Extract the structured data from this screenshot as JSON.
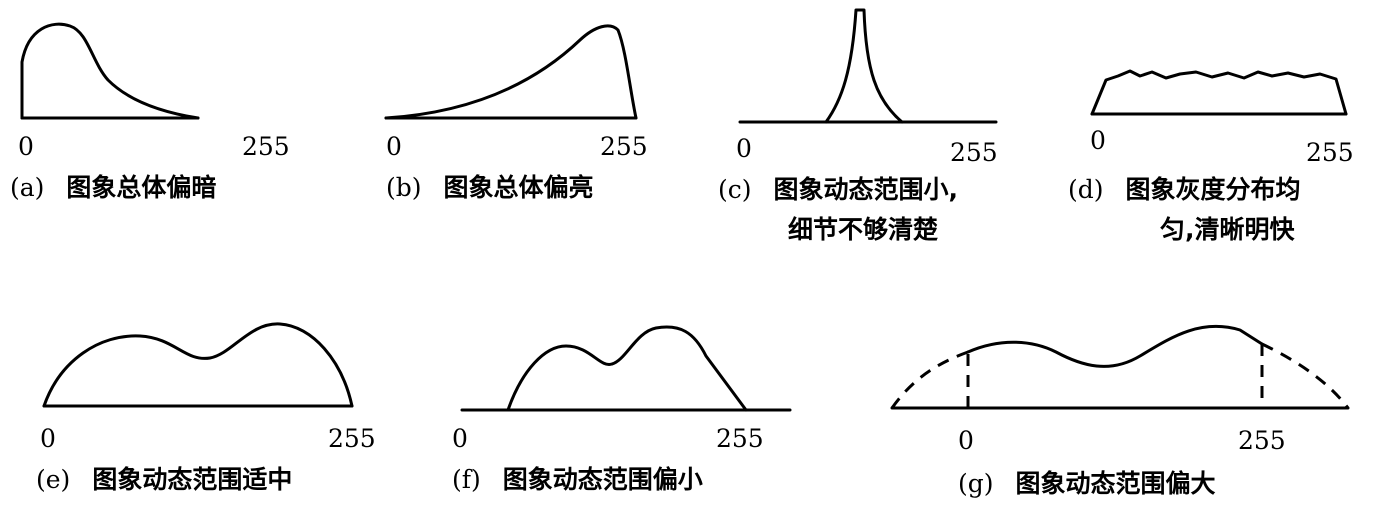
{
  "panels": [
    {
      "id": "a",
      "label": "(a)",
      "caption": "图象总体偏暗",
      "x_min": "0",
      "x_max": "255"
    },
    {
      "id": "b",
      "label": "(b)",
      "caption": "图象总体偏亮",
      "x_min": "0",
      "x_max": "255"
    },
    {
      "id": "c",
      "label": "(c)",
      "caption": "图象动态范围小,",
      "caption_line2": "细节不够清楚",
      "x_min": "0",
      "x_max": "255"
    },
    {
      "id": "d",
      "label": "(d)",
      "caption": "图象灰度分布均",
      "caption_line2": "匀,清晰明快",
      "x_min": "0",
      "x_max": "255"
    },
    {
      "id": "e",
      "label": "(e)",
      "caption": "图象动态范围适中",
      "x_min": "0",
      "x_max": "255"
    },
    {
      "id": "f",
      "label": "(f)",
      "caption": "图象动态范围偏小",
      "x_min": "0",
      "x_max": "255"
    },
    {
      "id": "g",
      "label": "(g)",
      "caption": "图象动态范围偏大",
      "x_min": "0",
      "x_max": "255"
    }
  ]
}
